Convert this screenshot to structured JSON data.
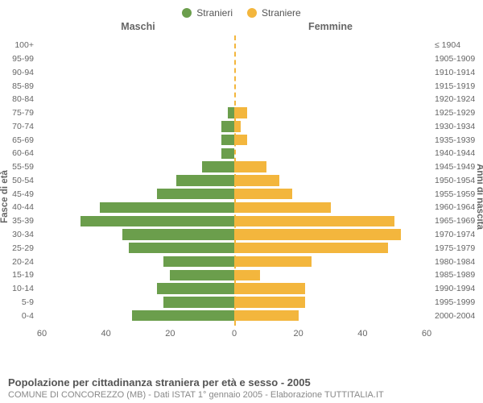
{
  "legend": {
    "male": {
      "label": "Stranieri",
      "color": "#6b9e4c"
    },
    "female": {
      "label": "Straniere",
      "color": "#f3b63d"
    }
  },
  "headers": {
    "male": "Maschi",
    "female": "Femmine"
  },
  "axis_titles": {
    "left": "Fasce di età",
    "right": "Anni di nascita"
  },
  "chart": {
    "type": "population-pyramid",
    "max_value": 60,
    "x_ticks_left": [
      60,
      40,
      20,
      0
    ],
    "x_ticks_right": [
      0,
      20,
      40,
      60
    ],
    "center_line_color": "#f3b63d",
    "background_color": "#ffffff",
    "bar_gap_pct": 10,
    "rows": [
      {
        "age": "0-4",
        "birth": "2000-2004",
        "m": 32,
        "f": 20
      },
      {
        "age": "5-9",
        "birth": "1995-1999",
        "m": 22,
        "f": 22
      },
      {
        "age": "10-14",
        "birth": "1990-1994",
        "m": 24,
        "f": 22
      },
      {
        "age": "15-19",
        "birth": "1985-1989",
        "m": 20,
        "f": 8
      },
      {
        "age": "20-24",
        "birth": "1980-1984",
        "m": 22,
        "f": 24
      },
      {
        "age": "25-29",
        "birth": "1975-1979",
        "m": 33,
        "f": 48
      },
      {
        "age": "30-34",
        "birth": "1970-1974",
        "m": 35,
        "f": 52
      },
      {
        "age": "35-39",
        "birth": "1965-1969",
        "m": 48,
        "f": 50
      },
      {
        "age": "40-44",
        "birth": "1960-1964",
        "m": 42,
        "f": 30
      },
      {
        "age": "45-49",
        "birth": "1955-1959",
        "m": 24,
        "f": 18
      },
      {
        "age": "50-54",
        "birth": "1950-1954",
        "m": 18,
        "f": 14
      },
      {
        "age": "55-59",
        "birth": "1945-1949",
        "m": 10,
        "f": 10
      },
      {
        "age": "60-64",
        "birth": "1940-1944",
        "m": 4,
        "f": 0
      },
      {
        "age": "65-69",
        "birth": "1935-1939",
        "m": 4,
        "f": 4
      },
      {
        "age": "70-74",
        "birth": "1930-1934",
        "m": 4,
        "f": 2
      },
      {
        "age": "75-79",
        "birth": "1925-1929",
        "m": 2,
        "f": 4
      },
      {
        "age": "80-84",
        "birth": "1920-1924",
        "m": 0,
        "f": 0
      },
      {
        "age": "85-89",
        "birth": "1915-1919",
        "m": 0,
        "f": 0
      },
      {
        "age": "90-94",
        "birth": "1910-1914",
        "m": 0,
        "f": 0
      },
      {
        "age": "95-99",
        "birth": "1905-1909",
        "m": 0,
        "f": 0
      },
      {
        "age": "100+",
        "birth": "≤ 1904",
        "m": 0,
        "f": 0
      }
    ]
  },
  "footer": {
    "title": "Popolazione per cittadinanza straniera per età e sesso - 2005",
    "subtitle": "COMUNE DI CONCOREZZO (MB) - Dati ISTAT 1° gennaio 2005 - Elaborazione TUTTITALIA.IT"
  },
  "colors": {
    "text": "#666666",
    "text_muted": "#888888"
  }
}
